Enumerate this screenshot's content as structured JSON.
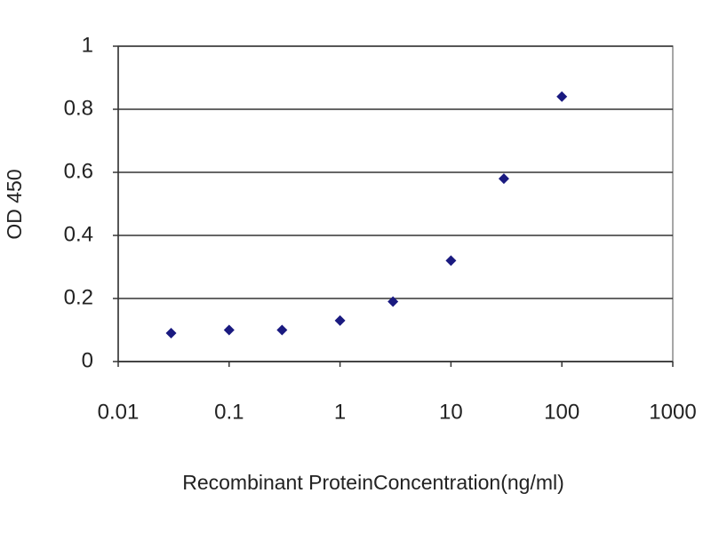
{
  "chart_data": {
    "type": "line",
    "xlabel": "Recombinant ProteinConcentration(ng/ml)",
    "ylabel": "OD 450",
    "x": [
      0.03,
      0.1,
      0.3,
      1,
      3,
      10,
      30,
      100
    ],
    "values": [
      0.09,
      0.1,
      0.1,
      0.13,
      0.19,
      0.32,
      0.58,
      0.84
    ],
    "color": "#1a1a80",
    "log_x": true,
    "xlim": [
      0.01,
      1000
    ],
    "xticks": [
      0.01,
      0.1,
      1,
      10,
      100,
      1000
    ],
    "ylim": [
      0,
      1
    ],
    "yticks": [
      0,
      0.2,
      0.4,
      0.6,
      0.8,
      1
    ],
    "grid": true
  }
}
